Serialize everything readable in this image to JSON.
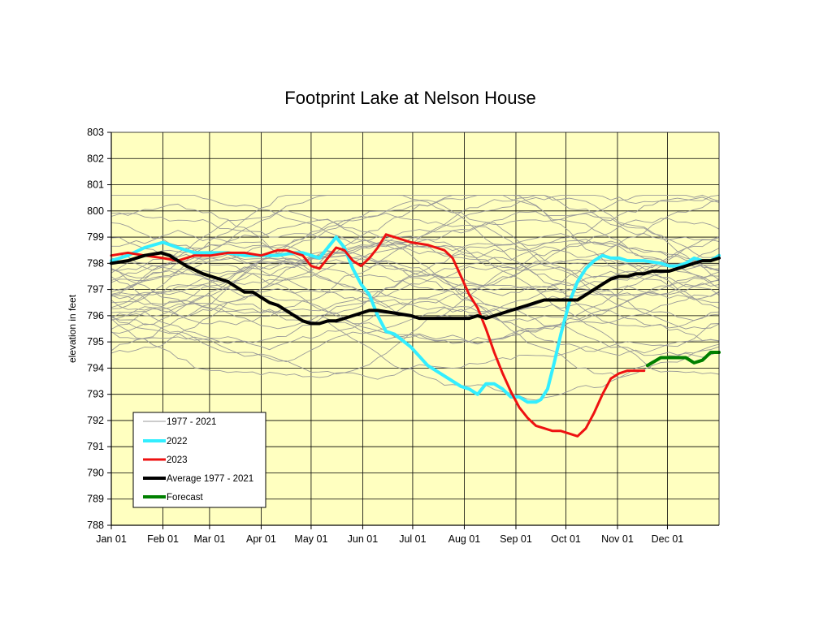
{
  "chart_data": {
    "type": "line",
    "title": "Footprint Lake at Nelson House",
    "xlabel": "",
    "ylabel": "elevation in feet",
    "ylim": [
      788,
      803
    ],
    "ytick_step": 1,
    "xlim": [
      0,
      365
    ],
    "x_ticks": [
      {
        "label": "Jan 01",
        "day": 0
      },
      {
        "label": "Feb 01",
        "day": 31
      },
      {
        "label": "Mar 01",
        "day": 59
      },
      {
        "label": "Apr 01",
        "day": 90
      },
      {
        "label": "May 01",
        "day": 120
      },
      {
        "label": "Jun 01",
        "day": 151
      },
      {
        "label": "Jul 01",
        "day": 181
      },
      {
        "label": "Aug 01",
        "day": 212
      },
      {
        "label": "Sep 01",
        "day": 243
      },
      {
        "label": "Oct 01",
        "day": 273
      },
      {
        "label": "Nov 01",
        "day": 304
      },
      {
        "label": "Dec 01",
        "day": 334
      }
    ],
    "grid": true,
    "legend_position": "bottom-left",
    "background_color": "#FFFFC0",
    "series": [
      {
        "name": "2022",
        "color": "#33EEFF",
        "width": 4,
        "x": [
          0,
          10,
          20,
          31,
          40,
          50,
          60,
          70,
          80,
          90,
          100,
          110,
          115,
          120,
          125,
          130,
          135,
          140,
          145,
          150,
          155,
          160,
          165,
          170,
          180,
          190,
          200,
          210,
          215,
          220,
          225,
          230,
          235,
          240,
          245,
          250,
          255,
          258,
          262,
          266,
          270,
          275,
          280,
          285,
          290,
          295,
          300,
          305,
          310,
          320,
          330,
          335,
          340,
          345,
          350,
          355,
          360,
          365
        ],
        "y": [
          798.1,
          798.3,
          798.6,
          798.8,
          798.6,
          798.4,
          798.4,
          798.4,
          798.3,
          798.3,
          798.3,
          798.4,
          798.4,
          798.3,
          798.2,
          798.6,
          799.0,
          798.6,
          797.8,
          797.2,
          796.8,
          796.0,
          795.4,
          795.3,
          794.8,
          794.1,
          793.7,
          793.3,
          793.2,
          793.0,
          793.4,
          793.4,
          793.2,
          792.9,
          792.9,
          792.7,
          792.7,
          792.8,
          793.2,
          794.2,
          795.3,
          796.5,
          797.3,
          797.8,
          798.1,
          798.3,
          798.2,
          798.2,
          798.1,
          798.1,
          798.0,
          797.9,
          797.9,
          798.0,
          798.2,
          798.1,
          798.1,
          798.3
        ]
      },
      {
        "name": "2023",
        "color": "#EE1111",
        "width": 3,
        "x": [
          0,
          10,
          20,
          31,
          40,
          50,
          60,
          70,
          80,
          90,
          100,
          105,
          110,
          115,
          120,
          125,
          130,
          135,
          140,
          145,
          150,
          155,
          160,
          165,
          170,
          180,
          190,
          195,
          200,
          205,
          210,
          215,
          220,
          225,
          230,
          235,
          240,
          245,
          250,
          255,
          260,
          265,
          270,
          275,
          280,
          285,
          290,
          295,
          300,
          305,
          310,
          315,
          320
        ],
        "y": [
          798.3,
          798.4,
          798.3,
          798.2,
          798.1,
          798.3,
          798.3,
          798.4,
          798.4,
          798.3,
          798.5,
          798.5,
          798.4,
          798.3,
          797.9,
          797.8,
          798.2,
          798.6,
          798.5,
          798.1,
          797.9,
          798.2,
          798.6,
          799.1,
          799.0,
          798.8,
          798.7,
          798.6,
          798.5,
          798.2,
          797.5,
          796.8,
          796.3,
          795.5,
          794.6,
          793.8,
          793.1,
          792.5,
          792.1,
          791.8,
          791.7,
          791.6,
          791.6,
          791.5,
          791.4,
          791.7,
          792.3,
          793.0,
          793.6,
          793.8,
          793.9,
          793.9,
          793.9
        ]
      },
      {
        "name": "Average 1977 - 2021",
        "color": "#000000",
        "width": 4,
        "x": [
          0,
          10,
          20,
          30,
          35,
          45,
          55,
          60,
          70,
          75,
          80,
          85,
          90,
          95,
          100,
          105,
          110,
          115,
          120,
          125,
          130,
          135,
          140,
          145,
          150,
          155,
          160,
          170,
          180,
          185,
          190,
          195,
          200,
          205,
          210,
          215,
          220,
          225,
          230,
          235,
          240,
          245,
          250,
          255,
          260,
          265,
          270,
          275,
          280,
          285,
          290,
          295,
          300,
          305,
          310,
          315,
          320,
          325,
          330,
          335,
          340,
          345,
          350,
          355,
          360,
          365
        ],
        "y": [
          798.0,
          798.1,
          798.3,
          798.4,
          798.3,
          797.9,
          797.6,
          797.5,
          797.3,
          797.1,
          796.9,
          796.9,
          796.7,
          796.5,
          796.4,
          796.2,
          796.0,
          795.8,
          795.7,
          795.7,
          795.8,
          795.8,
          795.9,
          796.0,
          796.1,
          796.2,
          796.2,
          796.1,
          796.0,
          795.9,
          795.9,
          795.9,
          795.9,
          795.9,
          795.9,
          795.9,
          796.0,
          795.9,
          796.0,
          796.1,
          796.2,
          796.3,
          796.4,
          796.5,
          796.6,
          796.6,
          796.6,
          796.6,
          796.6,
          796.8,
          797.0,
          797.2,
          797.4,
          797.5,
          797.5,
          797.6,
          797.6,
          797.7,
          797.7,
          797.7,
          797.8,
          797.9,
          798.0,
          798.1,
          798.1,
          798.2
        ]
      },
      {
        "name": "Forecast",
        "color": "#008000",
        "width": 4,
        "x": [
          322,
          330,
          337,
          345,
          350,
          355,
          360,
          365
        ],
        "y": [
          794.1,
          794.4,
          794.4,
          794.4,
          794.2,
          794.3,
          794.6,
          794.6
        ]
      }
    ],
    "historical_legend": {
      "name": "1977 - 2021",
      "color": "#999999"
    }
  }
}
